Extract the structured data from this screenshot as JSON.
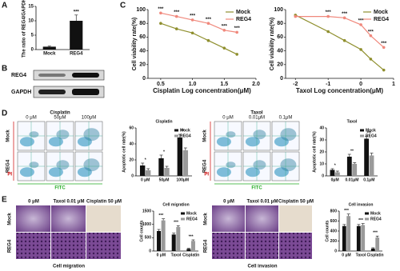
{
  "chart_data": [
    {
      "type": "bar",
      "ylabel": "The ratio of REG4/GAPDH",
      "categories": [
        "Mock",
        "REG4"
      ],
      "values": [
        1,
        10
      ],
      "errors": [
        0.2,
        2
      ],
      "color": "#111111",
      "ylim": [
        0,
        15
      ],
      "yticks": [
        0,
        5,
        10,
        15
      ],
      "annotations": [
        null,
        "***"
      ]
    },
    {
      "type": "line",
      "xlabel": "Cisplatin Log concentration(μM)",
      "ylabel": "Cell viability rate(%)",
      "x": [
        0.5,
        0.75,
        1,
        1.25,
        1.5,
        1.7
      ],
      "series": [
        {
          "name": "Mock",
          "color": "#8f8f2e",
          "values": [
            80,
            72,
            66,
            55,
            44,
            35
          ]
        },
        {
          "name": "REG4",
          "color": "#f0887c",
          "values": [
            95,
            90,
            85,
            80,
            70,
            67
          ]
        }
      ],
      "xlim": [
        0.3,
        2.0
      ],
      "xticks": [
        0.5,
        {
          "value": 1,
          "label": "1.0"
        },
        1.5,
        {
          "value": 2,
          "label": "2.0"
        }
      ],
      "ylim": [
        0,
        100
      ],
      "yticks": [
        0,
        20,
        40,
        60,
        80,
        100
      ],
      "annotations": [
        "***",
        "***",
        "***",
        "***",
        "***",
        "***"
      ],
      "legend": "upper right"
    },
    {
      "type": "line",
      "xlabel": "Taxol Log concentration(μM)",
      "ylabel": "Cell viability rate(%)",
      "x": [
        -2,
        -1,
        -0.5,
        0,
        0.3,
        0.7
      ],
      "series": [
        {
          "name": "Mock",
          "color": "#8f8f2e",
          "values": [
            92,
            68,
            55,
            42,
            28,
            12
          ]
        },
        {
          "name": "REG4",
          "color": "#f0887c",
          "values": [
            90,
            90,
            88,
            78,
            62,
            45
          ]
        }
      ],
      "xlim": [
        -2.3,
        1
      ],
      "xticks": [
        -2,
        -1,
        0,
        1
      ],
      "ylim": [
        0,
        100
      ],
      "yticks": [
        0,
        20,
        40,
        60,
        80,
        100
      ],
      "annotations": [
        null,
        "***",
        "***",
        "***",
        "***",
        "***"
      ],
      "legend": "upper right"
    },
    {
      "type": "bar",
      "title": "Cisplatin",
      "ylabel": "Apoptotic cell rate(%)",
      "categories": [
        "0 μM",
        "50μM",
        "100μM"
      ],
      "series": [
        {
          "name": "Mock",
          "color": "#111111",
          "values": [
            13,
            22,
            48
          ],
          "errors": [
            3,
            4,
            4
          ]
        },
        {
          "name": "REG4",
          "color": "#9a9a9a",
          "values": [
            7,
            10,
            32
          ],
          "errors": [
            2,
            2,
            3
          ]
        }
      ],
      "ylim": [
        0,
        60
      ],
      "yticks": [
        0,
        20,
        40,
        60
      ],
      "annotations": [
        "*",
        "*",
        "**"
      ],
      "legend": "upper right"
    },
    {
      "type": "bar",
      "title": "Taxol",
      "ylabel": "Apoptotic cell rate(%)",
      "categories": [
        "0μM",
        "0.01μM",
        "0.1μM"
      ],
      "series": [
        {
          "name": "Mock",
          "color": "#111111",
          "values": [
            5,
            16,
            31
          ],
          "errors": [
            1,
            2,
            2
          ]
        },
        {
          "name": "REG4",
          "color": "#9a9a9a",
          "values": [
            3,
            10,
            17
          ],
          "errors": [
            1,
            1,
            2
          ]
        }
      ],
      "ylim": [
        0,
        40
      ],
      "yticks": [
        0,
        10,
        20,
        30,
        40
      ],
      "annotations": [
        "*",
        "**",
        "***"
      ],
      "legend": "upper right"
    },
    {
      "type": "bar",
      "title": "Cell migration",
      "ylabel": "Cell counts",
      "categories": [
        "0 μM",
        "Taxol",
        "Cisplatin"
      ],
      "series": [
        {
          "name": "Mock",
          "color": "#111111",
          "values": [
            750,
            620,
            80
          ],
          "errors": [
            60,
            50,
            20
          ]
        },
        {
          "name": "REG4",
          "color": "#9a9a9a",
          "values": [
            1150,
            900,
            380
          ],
          "errors": [
            60,
            50,
            40
          ]
        }
      ],
      "ylim": [
        0,
        1500
      ],
      "yticks": [
        0,
        500,
        1000,
        1500
      ],
      "annotations": [
        "***",
        "***",
        "***"
      ],
      "legend": "upper right"
    },
    {
      "type": "bar",
      "title": "Cell invasion",
      "ylabel": "Cell counts",
      "categories": [
        "0 μM",
        "Taxol",
        "Cisplatin"
      ],
      "series": [
        {
          "name": "Mock",
          "color": "#111111",
          "values": [
            500,
            500,
            50
          ],
          "errors": [
            30,
            30,
            15
          ]
        },
        {
          "name": "REG4",
          "color": "#9a9a9a",
          "values": [
            700,
            520,
            270
          ],
          "errors": [
            40,
            30,
            30
          ]
        }
      ],
      "ylim": [
        0,
        800
      ],
      "yticks": [
        0,
        200,
        400,
        600,
        800
      ],
      "annotations": [
        "***",
        "***",
        "***"
      ],
      "legend": "upper right"
    }
  ],
  "labels": {
    "panel_letters": [
      "A",
      "B",
      "C",
      "D",
      "E"
    ],
    "blot_rows": [
      "REG4",
      "GAPDH"
    ],
    "flow": [
      {
        "title": "Cisplatin",
        "columns": [
          "0 μM",
          "50μM",
          "100μM"
        ],
        "rows": [
          "Mock",
          "REG4"
        ],
        "y_axis": "PI",
        "x_axis": "FITC"
      },
      {
        "title": "Taxol",
        "columns": [
          "0 μM",
          "0.01μM",
          "0.1μM"
        ],
        "rows": [
          "Mock",
          "REG4"
        ],
        "y_axis": "PI",
        "x_axis": "FITC"
      }
    ],
    "micro": [
      {
        "columns": [
          "0 μM",
          "Taxol 0.01 μM",
          "Cisplatin 50 μM"
        ],
        "rows": [
          "Mock",
          "REG4"
        ],
        "caption": "Cell migration"
      },
      {
        "columns": [
          "0 μM",
          "Taxol 0.01 μM",
          "Cisplatin 50 μM"
        ],
        "rows": [
          "Mock",
          "REG4"
        ],
        "caption": "Cell invasion"
      }
    ]
  }
}
